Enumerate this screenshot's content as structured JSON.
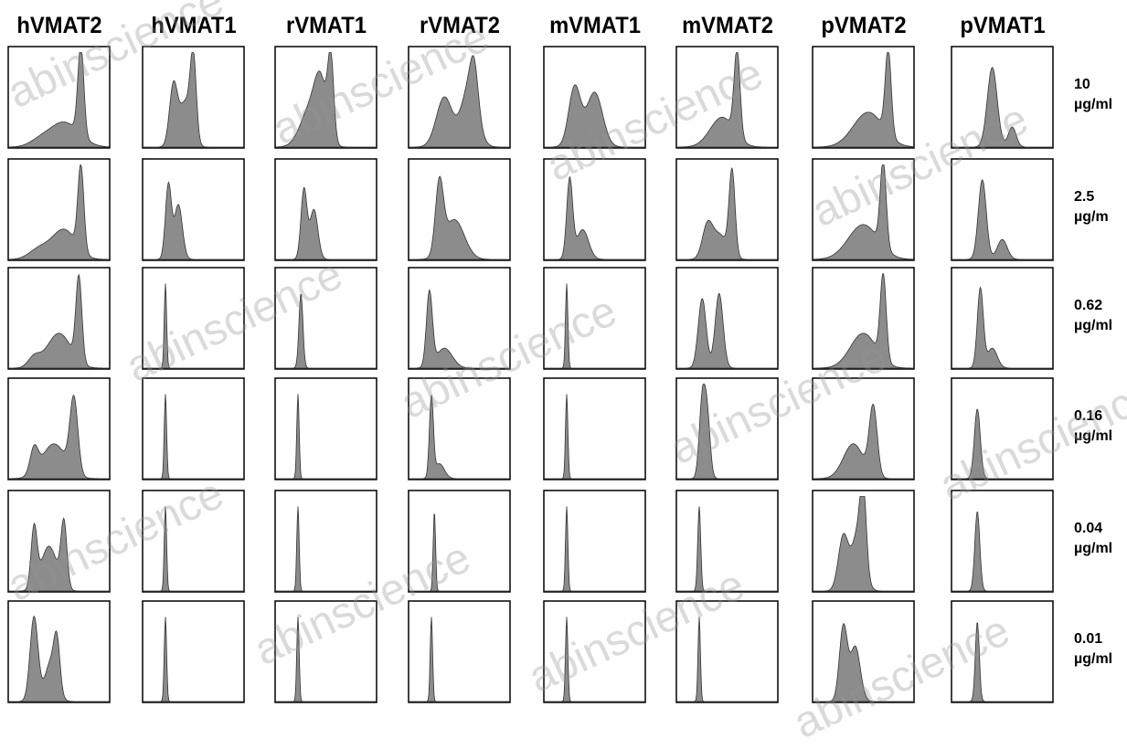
{
  "chart_data": {
    "type": "histogram-grid",
    "title": "",
    "columns": [
      "hVMAT2",
      "hVMAT1",
      "rVMAT1",
      "rVMAT2",
      "mVMAT1",
      "mVMAT2",
      "pVMAT2",
      "pVMAT1"
    ],
    "rows": [
      {
        "line1": "10",
        "line2": "µg/ml"
      },
      {
        "line1": "2.5",
        "line2": "µg/m"
      },
      {
        "line1": "0.62",
        "line2": "µg/ml"
      },
      {
        "line1": "0.16",
        "line2": "µg/ml"
      },
      {
        "line1": "0.04",
        "line2": "µg/ml"
      },
      {
        "line1": "0.01",
        "line2": "µg/ml"
      }
    ],
    "fill_color": "#8c8c8c",
    "panels": [
      [
        [
          [
            0.72,
            0.9,
            0.03
          ],
          [
            0.55,
            0.25,
            0.15
          ],
          [
            0.3,
            0.05,
            0.1
          ]
        ],
        [
          [
            0.72,
            0.85,
            0.03
          ],
          [
            0.55,
            0.3,
            0.12
          ],
          [
            0.3,
            0.1,
            0.1
          ]
        ],
        [
          [
            0.7,
            0.85,
            0.03
          ],
          [
            0.5,
            0.35,
            0.12
          ],
          [
            0.25,
            0.1,
            0.06
          ]
        ],
        [
          [
            0.65,
            0.75,
            0.04
          ],
          [
            0.45,
            0.35,
            0.12
          ],
          [
            0.25,
            0.25,
            0.04
          ]
        ],
        [
          [
            0.25,
            0.6,
            0.03
          ],
          [
            0.4,
            0.45,
            0.08
          ],
          [
            0.55,
            0.65,
            0.03
          ]
        ],
        [
          [
            0.25,
            0.85,
            0.04
          ],
          [
            0.42,
            0.4,
            0.06
          ],
          [
            0.48,
            0.45,
            0.03
          ]
        ]
      ],
      [
        [
          [
            0.3,
            0.6,
            0.04
          ],
          [
            0.42,
            0.45,
            0.06
          ],
          [
            0.5,
            0.8,
            0.03
          ]
        ],
        [
          [
            0.25,
            0.75,
            0.03
          ],
          [
            0.35,
            0.55,
            0.04
          ]
        ],
        [
          [
            0.22,
            0.85,
            0.012
          ]
        ],
        [
          [
            0.22,
            0.85,
            0.012
          ]
        ],
        [
          [
            0.22,
            0.85,
            0.012
          ]
        ],
        [
          [
            0.22,
            0.85,
            0.012
          ]
        ]
      ],
      [
        [
          [
            0.35,
            0.4,
            0.1
          ],
          [
            0.55,
            0.8,
            0.03
          ],
          [
            0.45,
            0.5,
            0.06
          ]
        ],
        [
          [
            0.28,
            0.7,
            0.03
          ],
          [
            0.38,
            0.5,
            0.04
          ]
        ],
        [
          [
            0.25,
            0.75,
            0.02
          ]
        ],
        [
          [
            0.22,
            0.85,
            0.012
          ]
        ],
        [
          [
            0.22,
            0.85,
            0.012
          ]
        ],
        [
          [
            0.22,
            0.85,
            0.012
          ]
        ]
      ],
      [
        [
          [
            0.35,
            0.5,
            0.08
          ],
          [
            0.6,
            0.6,
            0.08
          ],
          [
            0.65,
            0.4,
            0.04
          ]
        ],
        [
          [
            0.3,
            0.7,
            0.04
          ],
          [
            0.45,
            0.4,
            0.1
          ]
        ],
        [
          [
            0.2,
            0.75,
            0.03
          ],
          [
            0.35,
            0.2,
            0.08
          ]
        ],
        [
          [
            0.22,
            0.8,
            0.02
          ],
          [
            0.3,
            0.15,
            0.05
          ]
        ],
        [
          [
            0.25,
            0.8,
            0.012
          ]
        ],
        [
          [
            0.22,
            0.85,
            0.012
          ]
        ]
      ],
      [
        [
          [
            0.3,
            0.6,
            0.06
          ],
          [
            0.5,
            0.55,
            0.08
          ]
        ],
        [
          [
            0.25,
            0.8,
            0.03
          ],
          [
            0.38,
            0.3,
            0.06
          ]
        ],
        [
          [
            0.22,
            0.85,
            0.012
          ]
        ],
        [
          [
            0.22,
            0.85,
            0.012
          ]
        ],
        [
          [
            0.22,
            0.85,
            0.012
          ]
        ],
        [
          [
            0.22,
            0.85,
            0.012
          ]
        ]
      ],
      [
        [
          [
            0.6,
            0.85,
            0.03
          ],
          [
            0.45,
            0.3,
            0.12
          ]
        ],
        [
          [
            0.55,
            0.85,
            0.03
          ],
          [
            0.3,
            0.3,
            0.05
          ],
          [
            0.42,
            0.25,
            0.08
          ]
        ],
        [
          [
            0.25,
            0.7,
            0.04
          ],
          [
            0.42,
            0.75,
            0.04
          ]
        ],
        [
          [
            0.25,
            0.75,
            0.03
          ],
          [
            0.3,
            0.6,
            0.03
          ]
        ],
        [
          [
            0.22,
            0.85,
            0.015
          ]
        ],
        [
          [
            0.22,
            0.85,
            0.012
          ]
        ]
      ],
      [
        [
          [
            0.75,
            0.85,
            0.03
          ],
          [
            0.55,
            0.35,
            0.15
          ]
        ],
        [
          [
            0.7,
            0.85,
            0.03
          ],
          [
            0.5,
            0.35,
            0.15
          ]
        ],
        [
          [
            0.7,
            0.85,
            0.03
          ],
          [
            0.5,
            0.35,
            0.13
          ]
        ],
        [
          [
            0.6,
            0.7,
            0.04
          ],
          [
            0.4,
            0.35,
            0.1
          ]
        ],
        [
          [
            0.3,
            0.55,
            0.05
          ],
          [
            0.45,
            0.6,
            0.06
          ],
          [
            0.5,
            0.7,
            0.03
          ]
        ],
        [
          [
            0.3,
            0.75,
            0.04
          ],
          [
            0.42,
            0.55,
            0.05
          ]
        ]
      ],
      [
        [
          [
            0.4,
            0.8,
            0.05
          ],
          [
            0.6,
            0.2,
            0.04
          ]
        ],
        [
          [
            0.3,
            0.8,
            0.04
          ],
          [
            0.5,
            0.2,
            0.05
          ]
        ],
        [
          [
            0.28,
            0.8,
            0.03
          ],
          [
            0.4,
            0.2,
            0.05
          ]
        ],
        [
          [
            0.25,
            0.7,
            0.03
          ]
        ],
        [
          [
            0.25,
            0.8,
            0.025
          ]
        ],
        [
          [
            0.25,
            0.8,
            0.02
          ]
        ]
      ]
    ]
  },
  "watermark": "abinscience"
}
